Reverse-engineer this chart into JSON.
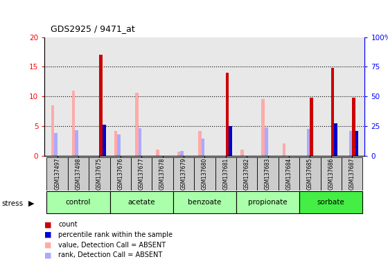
{
  "title": "GDS2925 / 9471_at",
  "samples": [
    "GSM137497",
    "GSM137498",
    "GSM137675",
    "GSM137676",
    "GSM137677",
    "GSM137678",
    "GSM137679",
    "GSM137680",
    "GSM137681",
    "GSM137682",
    "GSM137683",
    "GSM137684",
    "GSM137685",
    "GSM137686",
    "GSM137687"
  ],
  "groups": [
    {
      "label": "control",
      "color": "#aaffaa",
      "indices": [
        0,
        1,
        2
      ]
    },
    {
      "label": "acetate",
      "color": "#aaffaa",
      "indices": [
        3,
        4,
        5
      ]
    },
    {
      "label": "benzoate",
      "color": "#aaffaa",
      "indices": [
        6,
        7,
        8
      ]
    },
    {
      "label": "propionate",
      "color": "#aaffaa",
      "indices": [
        9,
        10,
        11
      ]
    },
    {
      "label": "sorbate",
      "color": "#44ee44",
      "indices": [
        12,
        13,
        14
      ]
    }
  ],
  "count_values": [
    0,
    0,
    17,
    0,
    0,
    0,
    0,
    0,
    14,
    0,
    0,
    0,
    9.8,
    14.8,
    9.8
  ],
  "rank_values": [
    0,
    0,
    5.2,
    0,
    0,
    0,
    0,
    0,
    5.0,
    0,
    0,
    0,
    0,
    5.5,
    4.2
  ],
  "value_absent": [
    8.5,
    11.0,
    0,
    4.2,
    10.6,
    1.0,
    0.7,
    4.2,
    0,
    1.0,
    9.5,
    2.1,
    0,
    0,
    0
  ],
  "rank_absent": [
    3.8,
    4.3,
    0,
    3.6,
    4.6,
    0,
    0.8,
    2.9,
    0,
    0,
    4.8,
    0,
    4.5,
    0,
    4.2
  ],
  "ylim_left": [
    0,
    20
  ],
  "ylim_right": [
    0,
    100
  ],
  "yticks_left": [
    0,
    5,
    10,
    15,
    20
  ],
  "yticks_right": [
    0,
    25,
    50,
    75,
    100
  ],
  "ytick_right_labels": [
    "0",
    "25",
    "50",
    "75",
    "100%"
  ],
  "bar_width": 0.15,
  "color_count": "#cc0000",
  "color_rank": "#0000cc",
  "color_value_absent": "#ffaaaa",
  "color_rank_absent": "#aaaaff",
  "background_plot": "#e8e8e8",
  "background_fig": "#ffffff",
  "legend_items": [
    {
      "label": "count",
      "color": "#cc0000"
    },
    {
      "label": "percentile rank within the sample",
      "color": "#0000cc"
    },
    {
      "label": "value, Detection Call = ABSENT",
      "color": "#ffaaaa"
    },
    {
      "label": "rank, Detection Call = ABSENT",
      "color": "#aaaaff"
    }
  ]
}
